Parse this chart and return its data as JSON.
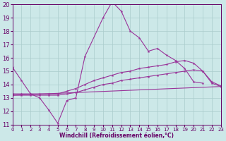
{
  "background_color": "#cce8e8",
  "grid_color": "#aacccc",
  "line_color": "#993399",
  "xlabel": "Windchill (Refroidissement éolien,°C)",
  "xlabel_color": "#660066",
  "tick_color": "#660066",
  "xlim": [
    0,
    23
  ],
  "ylim": [
    11,
    20
  ],
  "yticks": [
    11,
    12,
    13,
    14,
    15,
    16,
    17,
    18,
    19,
    20
  ],
  "xticks": [
    0,
    1,
    2,
    3,
    4,
    5,
    6,
    7,
    8,
    9,
    10,
    11,
    12,
    13,
    14,
    15,
    16,
    17,
    18,
    19,
    20,
    21,
    22,
    23
  ],
  "series": [
    {
      "x": [
        0,
        1,
        2,
        3,
        4,
        5,
        6,
        7,
        8,
        10,
        11,
        12,
        13,
        14,
        15,
        16,
        17,
        18,
        19,
        20,
        21
      ],
      "y": [
        15.3,
        14.3,
        13.3,
        13.0,
        12.1,
        11.1,
        12.8,
        13.0,
        16.1,
        19.0,
        20.2,
        19.5,
        18.0,
        17.5,
        16.5,
        16.7,
        16.2,
        15.8,
        15.2,
        14.2,
        14.1
      ]
    },
    {
      "x": [
        0,
        1,
        2,
        3,
        4,
        5,
        6,
        7,
        8,
        9,
        10,
        11,
        12,
        13,
        14,
        15,
        16,
        17,
        18,
        19,
        20,
        21,
        22,
        23
      ],
      "y": [
        13.3,
        13.3,
        13.3,
        13.3,
        13.3,
        13.3,
        13.5,
        13.7,
        14.0,
        14.3,
        14.5,
        14.7,
        14.9,
        15.0,
        15.2,
        15.3,
        15.4,
        15.5,
        15.7,
        15.8,
        15.6,
        15.0,
        14.2,
        13.9
      ]
    },
    {
      "x": [
        0,
        1,
        2,
        3,
        4,
        5,
        6,
        7,
        8,
        9,
        10,
        11,
        12,
        13,
        14,
        15,
        16,
        17,
        18,
        19,
        20,
        21,
        22,
        23
      ],
      "y": [
        13.2,
        13.2,
        13.2,
        13.2,
        13.2,
        13.2,
        13.3,
        13.4,
        13.6,
        13.8,
        14.0,
        14.1,
        14.3,
        14.4,
        14.5,
        14.6,
        14.7,
        14.8,
        14.9,
        15.0,
        15.1,
        15.0,
        14.1,
        13.85
      ]
    },
    {
      "x": [
        0,
        23
      ],
      "y": [
        13.2,
        13.85
      ]
    }
  ]
}
